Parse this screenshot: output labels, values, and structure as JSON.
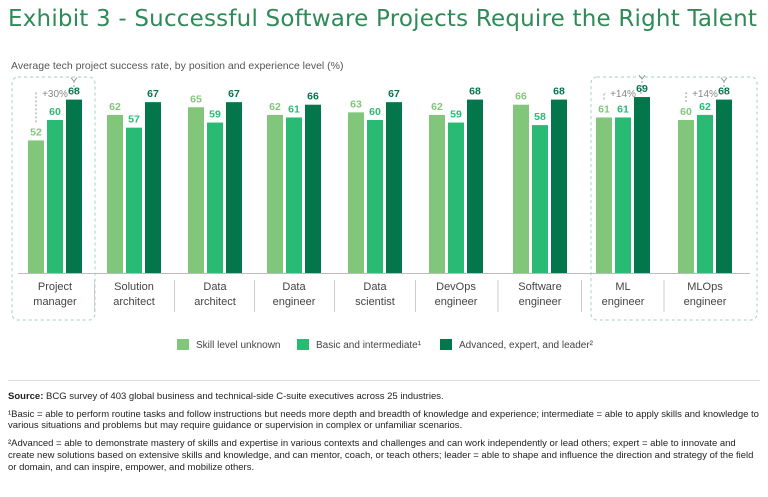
{
  "header": {
    "title": "Exhibit 3 - Successful Software Projects Require the Right Talent"
  },
  "chart_data": {
    "type": "bar",
    "title": "Exhibit 3 - Successful Software Projects Require the Right Talent",
    "subtitle": "Average tech project success rate, by position and experience level (%)",
    "ylim": [
      0,
      70
    ],
    "grid": false,
    "legend_position": "bottom",
    "categories": [
      [
        "Project",
        "manager"
      ],
      [
        "Solution",
        "architect"
      ],
      [
        "Data",
        "architect"
      ],
      [
        "Data",
        "engineer"
      ],
      [
        "Data",
        "scientist"
      ],
      [
        "DevOps",
        "engineer"
      ],
      [
        "Software",
        "engineer"
      ],
      [
        "ML",
        "engineer"
      ],
      [
        "MLOps",
        "engineer"
      ]
    ],
    "series": [
      {
        "name": "Skill level unknown",
        "color": "#82c67c",
        "values": [
          52,
          62,
          65,
          62,
          63,
          62,
          66,
          61,
          60
        ]
      },
      {
        "name": "Basic and intermediate¹",
        "color": "#29ba74",
        "values": [
          60,
          57,
          59,
          61,
          60,
          59,
          58,
          61,
          62
        ]
      },
      {
        "name": "Advanced, expert, and leader²",
        "color": "#03774b",
        "values": [
          68,
          67,
          67,
          66,
          67,
          68,
          68,
          69,
          68
        ]
      }
    ],
    "annotations": [
      {
        "category_index": 0,
        "text": "+30%"
      },
      {
        "category_index": 7,
        "text": "+14%"
      },
      {
        "category_index": 8,
        "text": "+14%"
      }
    ],
    "highlight_groups": [
      [
        0
      ],
      [
        7,
        8
      ]
    ]
  },
  "footnotes": {
    "source_label": "Source:",
    "source_text": "BCG survey of 403 global business and technical-side C-suite executives across 25 industries.",
    "note1": "¹Basic = able to perform routine tasks and follow instructions but needs more depth and breadth of knowledge and experience; intermediate = able to apply skills and knowledge to various situations and problems but may require guidance or supervision in complex or unfamiliar scenarios.",
    "note2": "²Advanced = able to demonstrate mastery of skills and expertise in various contexts and challenges and can work independently or lead others; expert = able to innovate and create new solutions based on extensive skills and knowledge, and can mentor, coach, or teach others; leader = able to shape and influence the direction and strategy of the field or domain, and can inspire, empower, and mobilize others."
  }
}
